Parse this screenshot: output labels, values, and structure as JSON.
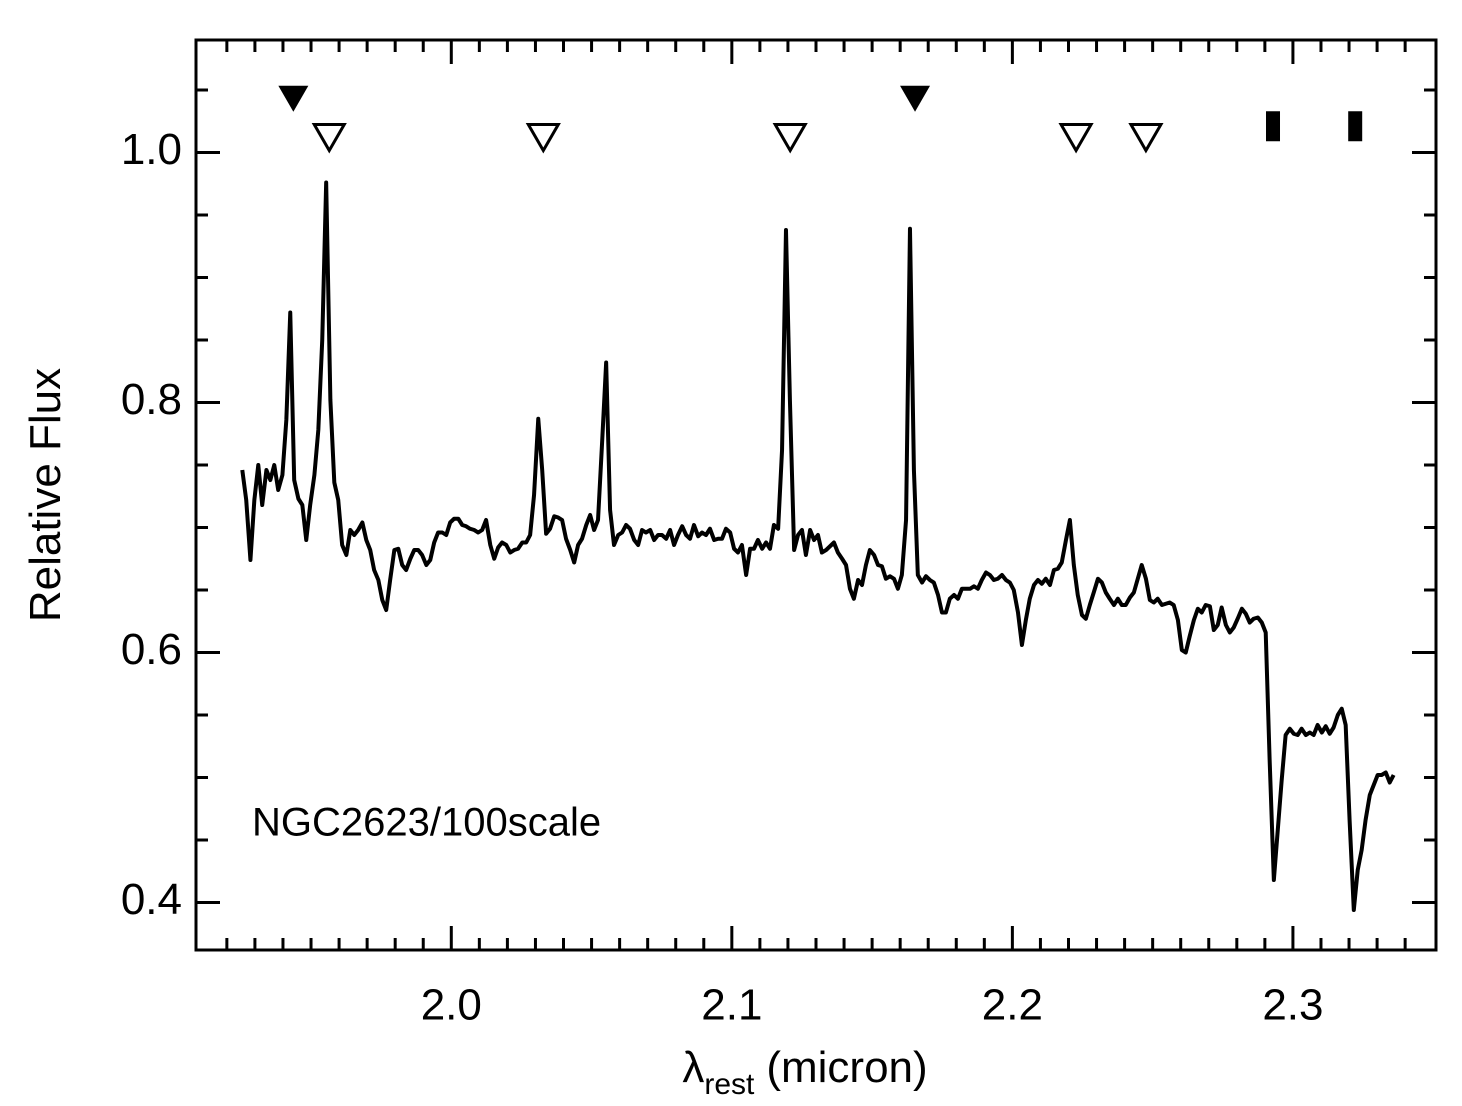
{
  "chart_data": {
    "type": "line",
    "ylabel": "Relative Flux",
    "xlabel": {
      "symbol": "λ",
      "subscript": "rest",
      "text": "(micron)"
    },
    "annotation": "NGC2623/100scale",
    "xlim": [
      1.909,
      2.351
    ],
    "ylim": [
      0.362,
      1.09
    ],
    "xticks": [
      {
        "value": 2,
        "label": "2.0"
      },
      2.1,
      2.2,
      2.3
    ],
    "yticks": [
      0.4,
      0.6,
      0.8,
      {
        "value": 1,
        "label": "1.0"
      }
    ],
    "xminorticks": [
      1.92,
      1.93,
      1.94,
      1.95,
      1.96,
      1.97,
      1.98,
      1.99,
      2.01,
      2.02,
      2.03,
      2.04,
      2.05,
      2.06,
      2.07,
      2.08,
      2.09,
      2.11,
      2.12,
      2.13,
      2.14,
      2.15,
      2.16,
      2.17,
      2.18,
      2.19,
      2.21,
      2.22,
      2.23,
      2.24,
      2.25,
      2.26,
      2.27,
      2.28,
      2.29,
      2.31,
      2.32,
      2.33,
      2.34
    ],
    "yminorticks": [
      0.45,
      0.5,
      0.55,
      0.65,
      0.7,
      0.75,
      0.85,
      0.9,
      0.95,
      1.05
    ],
    "x": [
      1.9255,
      1.9269,
      1.9284,
      1.9298,
      1.9312,
      1.9326,
      1.9341,
      1.9355,
      1.9369,
      1.9383,
      1.9398,
      1.9412,
      1.9426,
      1.944,
      1.9455,
      1.9469,
      1.9483,
      1.9497,
      1.9512,
      1.9526,
      1.954,
      1.9554,
      1.9569,
      1.9583,
      1.9597,
      1.9611,
      1.9626,
      1.964,
      1.9654,
      1.9668,
      1.9683,
      1.9697,
      1.9711,
      1.9725,
      1.974,
      1.9754,
      1.9768,
      1.9782,
      1.9797,
      1.9811,
      1.9825,
      1.9839,
      1.9854,
      1.9868,
      1.9882,
      1.9896,
      1.9911,
      1.9925,
      1.9939,
      1.9953,
      1.9968,
      1.9982,
      1.9996,
      2.001,
      2.0025,
      2.0039,
      2.0053,
      2.0067,
      2.0082,
      2.0096,
      2.011,
      2.0124,
      2.0139,
      2.0153,
      2.0167,
      2.0181,
      2.0196,
      2.021,
      2.0224,
      2.0238,
      2.0253,
      2.0267,
      2.0281,
      2.0295,
      2.031,
      2.0324,
      2.0338,
      2.0352,
      2.0367,
      2.0381,
      2.0395,
      2.0409,
      2.0424,
      2.0438,
      2.0452,
      2.0466,
      2.0481,
      2.0495,
      2.0509,
      2.0523,
      2.0538,
      2.0552,
      2.0566,
      2.058,
      2.0595,
      2.0609,
      2.0623,
      2.0637,
      2.0652,
      2.0666,
      2.068,
      2.0694,
      2.0709,
      2.0723,
      2.0737,
      2.0751,
      2.0766,
      2.078,
      2.0794,
      2.0808,
      2.0823,
      2.0837,
      2.0851,
      2.0865,
      2.088,
      2.0894,
      2.0908,
      2.0922,
      2.0937,
      2.0951,
      2.0965,
      2.0979,
      2.0994,
      2.1008,
      2.1022,
      2.1036,
      2.1051,
      2.1065,
      2.1079,
      2.1093,
      2.1108,
      2.1122,
      2.1136,
      2.115,
      2.1165,
      2.1179,
      2.1193,
      2.1207,
      2.1222,
      2.1236,
      2.125,
      2.1264,
      2.1279,
      2.1293,
      2.1307,
      2.1321,
      2.1336,
      2.135,
      2.1364,
      2.1378,
      2.1393,
      2.1407,
      2.1421,
      2.1435,
      2.145,
      2.1464,
      2.1478,
      2.1492,
      2.1507,
      2.1521,
      2.1535,
      2.1549,
      2.1564,
      2.1578,
      2.1592,
      2.1606,
      2.1621,
      2.1635,
      2.1649,
      2.1663,
      2.1678,
      2.1692,
      2.1706,
      2.172,
      2.1735,
      2.1749,
      2.1763,
      2.1777,
      2.1792,
      2.1806,
      2.182,
      2.1834,
      2.1849,
      2.1863,
      2.1877,
      2.1891,
      2.1906,
      2.192,
      2.1934,
      2.1948,
      2.1963,
      2.1977,
      2.1991,
      2.2005,
      2.202,
      2.2034,
      2.2048,
      2.2062,
      2.2077,
      2.2091,
      2.2105,
      2.2119,
      2.2134,
      2.2148,
      2.2162,
      2.2176,
      2.2191,
      2.2205,
      2.2219,
      2.2233,
      2.2248,
      2.2262,
      2.2276,
      2.229,
      2.2305,
      2.2319,
      2.2333,
      2.2347,
      2.2362,
      2.2376,
      2.239,
      2.2404,
      2.2419,
      2.2433,
      2.2447,
      2.2461,
      2.2476,
      2.249,
      2.2504,
      2.2518,
      2.2533,
      2.2547,
      2.2561,
      2.2575,
      2.259,
      2.2604,
      2.2618,
      2.2632,
      2.2647,
      2.2661,
      2.2675,
      2.2689,
      2.2704,
      2.2718,
      2.2732,
      2.2746,
      2.2761,
      2.2775,
      2.2789,
      2.2803,
      2.2818,
      2.2832,
      2.2846,
      2.286,
      2.2875,
      2.2889,
      2.2903,
      2.2917,
      2.2932,
      2.2946,
      2.296,
      2.2974,
      2.2989,
      2.3003,
      2.3017,
      2.3031,
      2.3046,
      2.306,
      2.3074,
      2.3088,
      2.3103,
      2.3117,
      2.3131,
      2.3145,
      2.316,
      2.3174,
      2.3188,
      2.3202,
      2.3217,
      2.3231,
      2.3245,
      2.3259,
      2.3274,
      2.3288,
      2.3302,
      2.3316,
      2.3331,
      2.3345,
      2.3359
    ],
    "series": [
      {
        "color": "#000000",
        "values": [
          0.746,
          0.722,
          0.674,
          0.722,
          0.75,
          0.718,
          0.746,
          0.738,
          0.75,
          0.73,
          0.742,
          0.786,
          0.872,
          0.738,
          0.723,
          0.718,
          0.69,
          0.718,
          0.742,
          0.778,
          0.85,
          0.976,
          0.802,
          0.736,
          0.722,
          0.686,
          0.678,
          0.698,
          0.694,
          0.698,
          0.704,
          0.69,
          0.682,
          0.666,
          0.658,
          0.642,
          0.634,
          0.658,
          0.682,
          0.683,
          0.67,
          0.666,
          0.675,
          0.682,
          0.682,
          0.678,
          0.67,
          0.674,
          0.688,
          0.696,
          0.696,
          0.694,
          0.704,
          0.707,
          0.707,
          0.702,
          0.701,
          0.699,
          0.698,
          0.696,
          0.698,
          0.706,
          0.686,
          0.675,
          0.684,
          0.688,
          0.686,
          0.68,
          0.682,
          0.683,
          0.688,
          0.688,
          0.694,
          0.726,
          0.787,
          0.746,
          0.695,
          0.699,
          0.709,
          0.708,
          0.706,
          0.691,
          0.682,
          0.672,
          0.686,
          0.691,
          0.702,
          0.71,
          0.698,
          0.706,
          0.77,
          0.832,
          0.714,
          0.686,
          0.694,
          0.696,
          0.702,
          0.699,
          0.69,
          0.686,
          0.698,
          0.696,
          0.698,
          0.69,
          0.694,
          0.694,
          0.691,
          0.698,
          0.686,
          0.694,
          0.701,
          0.694,
          0.691,
          0.702,
          0.693,
          0.696,
          0.694,
          0.699,
          0.69,
          0.691,
          0.691,
          0.699,
          0.696,
          0.683,
          0.68,
          0.686,
          0.662,
          0.683,
          0.683,
          0.69,
          0.683,
          0.688,
          0.683,
          0.702,
          0.699,
          0.762,
          0.938,
          0.802,
          0.682,
          0.694,
          0.698,
          0.678,
          0.698,
          0.69,
          0.694,
          0.68,
          0.682,
          0.685,
          0.688,
          0.68,
          0.675,
          0.67,
          0.651,
          0.643,
          0.658,
          0.654,
          0.67,
          0.682,
          0.678,
          0.67,
          0.669,
          0.659,
          0.661,
          0.659,
          0.651,
          0.662,
          0.706,
          0.939,
          0.746,
          0.662,
          0.656,
          0.661,
          0.658,
          0.656,
          0.646,
          0.632,
          0.632,
          0.643,
          0.646,
          0.643,
          0.651,
          0.651,
          0.651,
          0.653,
          0.651,
          0.658,
          0.664,
          0.662,
          0.658,
          0.659,
          0.662,
          0.658,
          0.656,
          0.65,
          0.632,
          0.606,
          0.626,
          0.643,
          0.654,
          0.658,
          0.655,
          0.659,
          0.654,
          0.666,
          0.667,
          0.672,
          0.69,
          0.706,
          0.67,
          0.646,
          0.63,
          0.627,
          0.638,
          0.648,
          0.659,
          0.656,
          0.648,
          0.643,
          0.638,
          0.643,
          0.638,
          0.638,
          0.644,
          0.648,
          0.659,
          0.67,
          0.659,
          0.642,
          0.64,
          0.643,
          0.638,
          0.639,
          0.64,
          0.638,
          0.626,
          0.602,
          0.6,
          0.613,
          0.626,
          0.635,
          0.632,
          0.638,
          0.637,
          0.618,
          0.622,
          0.636,
          0.622,
          0.616,
          0.62,
          0.627,
          0.635,
          0.631,
          0.624,
          0.627,
          0.628,
          0.624,
          0.616,
          0.514,
          0.418,
          0.458,
          0.498,
          0.534,
          0.539,
          0.535,
          0.534,
          0.539,
          0.534,
          0.536,
          0.534,
          0.542,
          0.536,
          0.541,
          0.535,
          0.54,
          0.55,
          0.555,
          0.542,
          0.466,
          0.394,
          0.426,
          0.442,
          0.466,
          0.486,
          0.494,
          0.502,
          0.502,
          0.504,
          0.496,
          0.502
        ]
      }
    ],
    "markers": [
      {
        "marker": "filled-triangle",
        "color": "#000000",
        "x": [
          1.9437,
          2.1653
        ],
        "y": [
          1.043,
          1.043
        ]
      },
      {
        "marker": "open-triangle",
        "color": "#000000",
        "x": [
          1.9565,
          2.0328,
          2.1208,
          2.2227,
          2.2476
        ],
        "y": [
          1.012,
          1.012,
          1.012,
          1.012,
          1.012
        ]
      },
      {
        "marker": "square",
        "color": "#000000",
        "x": [
          2.2929,
          2.3222
        ],
        "y": [
          1.021,
          1.021
        ]
      }
    ]
  }
}
